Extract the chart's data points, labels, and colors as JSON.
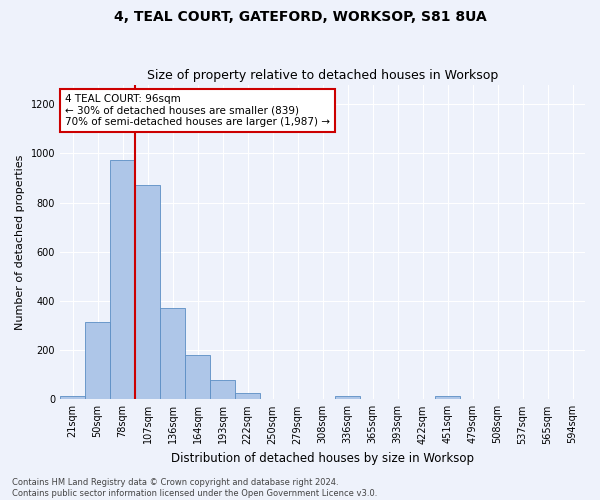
{
  "title": "4, TEAL COURT, GATEFORD, WORKSOP, S81 8UA",
  "subtitle": "Size of property relative to detached houses in Worksop",
  "xlabel": "Distribution of detached houses by size in Worksop",
  "ylabel": "Number of detached properties",
  "bin_labels": [
    "21sqm",
    "50sqm",
    "78sqm",
    "107sqm",
    "136sqm",
    "164sqm",
    "193sqm",
    "222sqm",
    "250sqm",
    "279sqm",
    "308sqm",
    "336sqm",
    "365sqm",
    "393sqm",
    "422sqm",
    "451sqm",
    "479sqm",
    "508sqm",
    "537sqm",
    "565sqm",
    "594sqm"
  ],
  "bar_values": [
    15,
    315,
    975,
    870,
    370,
    180,
    80,
    25,
    0,
    0,
    0,
    15,
    0,
    0,
    0,
    15,
    0,
    0,
    0,
    0,
    0
  ],
  "bar_color": "#aec6e8",
  "bar_edge_color": "#5b8ec4",
  "vline_color": "#cc0000",
  "vline_x_idx": 2,
  "annotation_text": "4 TEAL COURT: 96sqm\n← 30% of detached houses are smaller (839)\n70% of semi-detached houses are larger (1,987) →",
  "annotation_box_color": "#ffffff",
  "annotation_box_edge": "#cc0000",
  "ylim": [
    0,
    1280
  ],
  "yticks": [
    0,
    200,
    400,
    600,
    800,
    1000,
    1200
  ],
  "bg_color": "#eef2fb",
  "footer_text": "Contains HM Land Registry data © Crown copyright and database right 2024.\nContains public sector information licensed under the Open Government Licence v3.0.",
  "title_fontsize": 10,
  "subtitle_fontsize": 9,
  "ylabel_fontsize": 8,
  "xlabel_fontsize": 8.5,
  "tick_fontsize": 7,
  "footer_fontsize": 6
}
